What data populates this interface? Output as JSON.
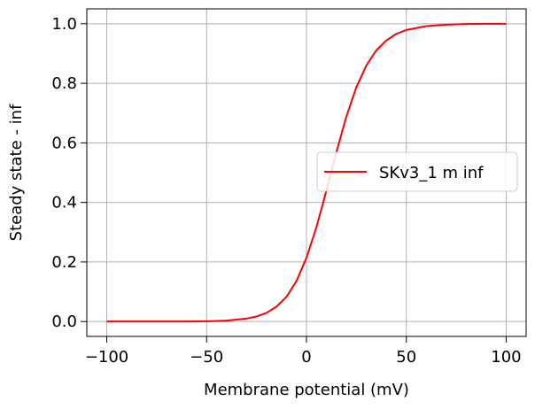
{
  "chart_data": {
    "type": "line",
    "title": "",
    "xlabel": "Membrane potential (mV)",
    "ylabel": "Steady state - inf",
    "xlim": [
      -110,
      110
    ],
    "ylim": [
      -0.05,
      1.05
    ],
    "xticks": [
      -100,
      -50,
      0,
      50,
      100
    ],
    "xtick_labels": [
      "−100",
      "−50",
      "0",
      "50",
      "100"
    ],
    "yticks": [
      0.0,
      0.2,
      0.4,
      0.6,
      0.8,
      1.0
    ],
    "ytick_labels": [
      "0.0",
      "0.2",
      "0.4",
      "0.6",
      "0.8",
      "1.0"
    ],
    "grid": true,
    "legend_position": "center-right",
    "series": [
      {
        "name": "SKv3_1 m inf",
        "color": "#ff0000",
        "x": [
          -100,
          -90,
          -80,
          -70,
          -60,
          -50,
          -40,
          -30,
          -25,
          -20,
          -15,
          -10,
          -5,
          0,
          5,
          10,
          15,
          20,
          25,
          30,
          35,
          40,
          45,
          50,
          60,
          70,
          80,
          90,
          100
        ],
        "y": [
          0.0,
          0.0,
          0.0,
          0.0,
          0.0,
          0.001,
          0.003,
          0.01,
          0.017,
          0.029,
          0.05,
          0.083,
          0.136,
          0.214,
          0.317,
          0.44,
          0.569,
          0.689,
          0.787,
          0.86,
          0.911,
          0.944,
          0.966,
          0.979,
          0.992,
          0.997,
          0.999,
          1.0,
          1.0
        ]
      }
    ]
  }
}
